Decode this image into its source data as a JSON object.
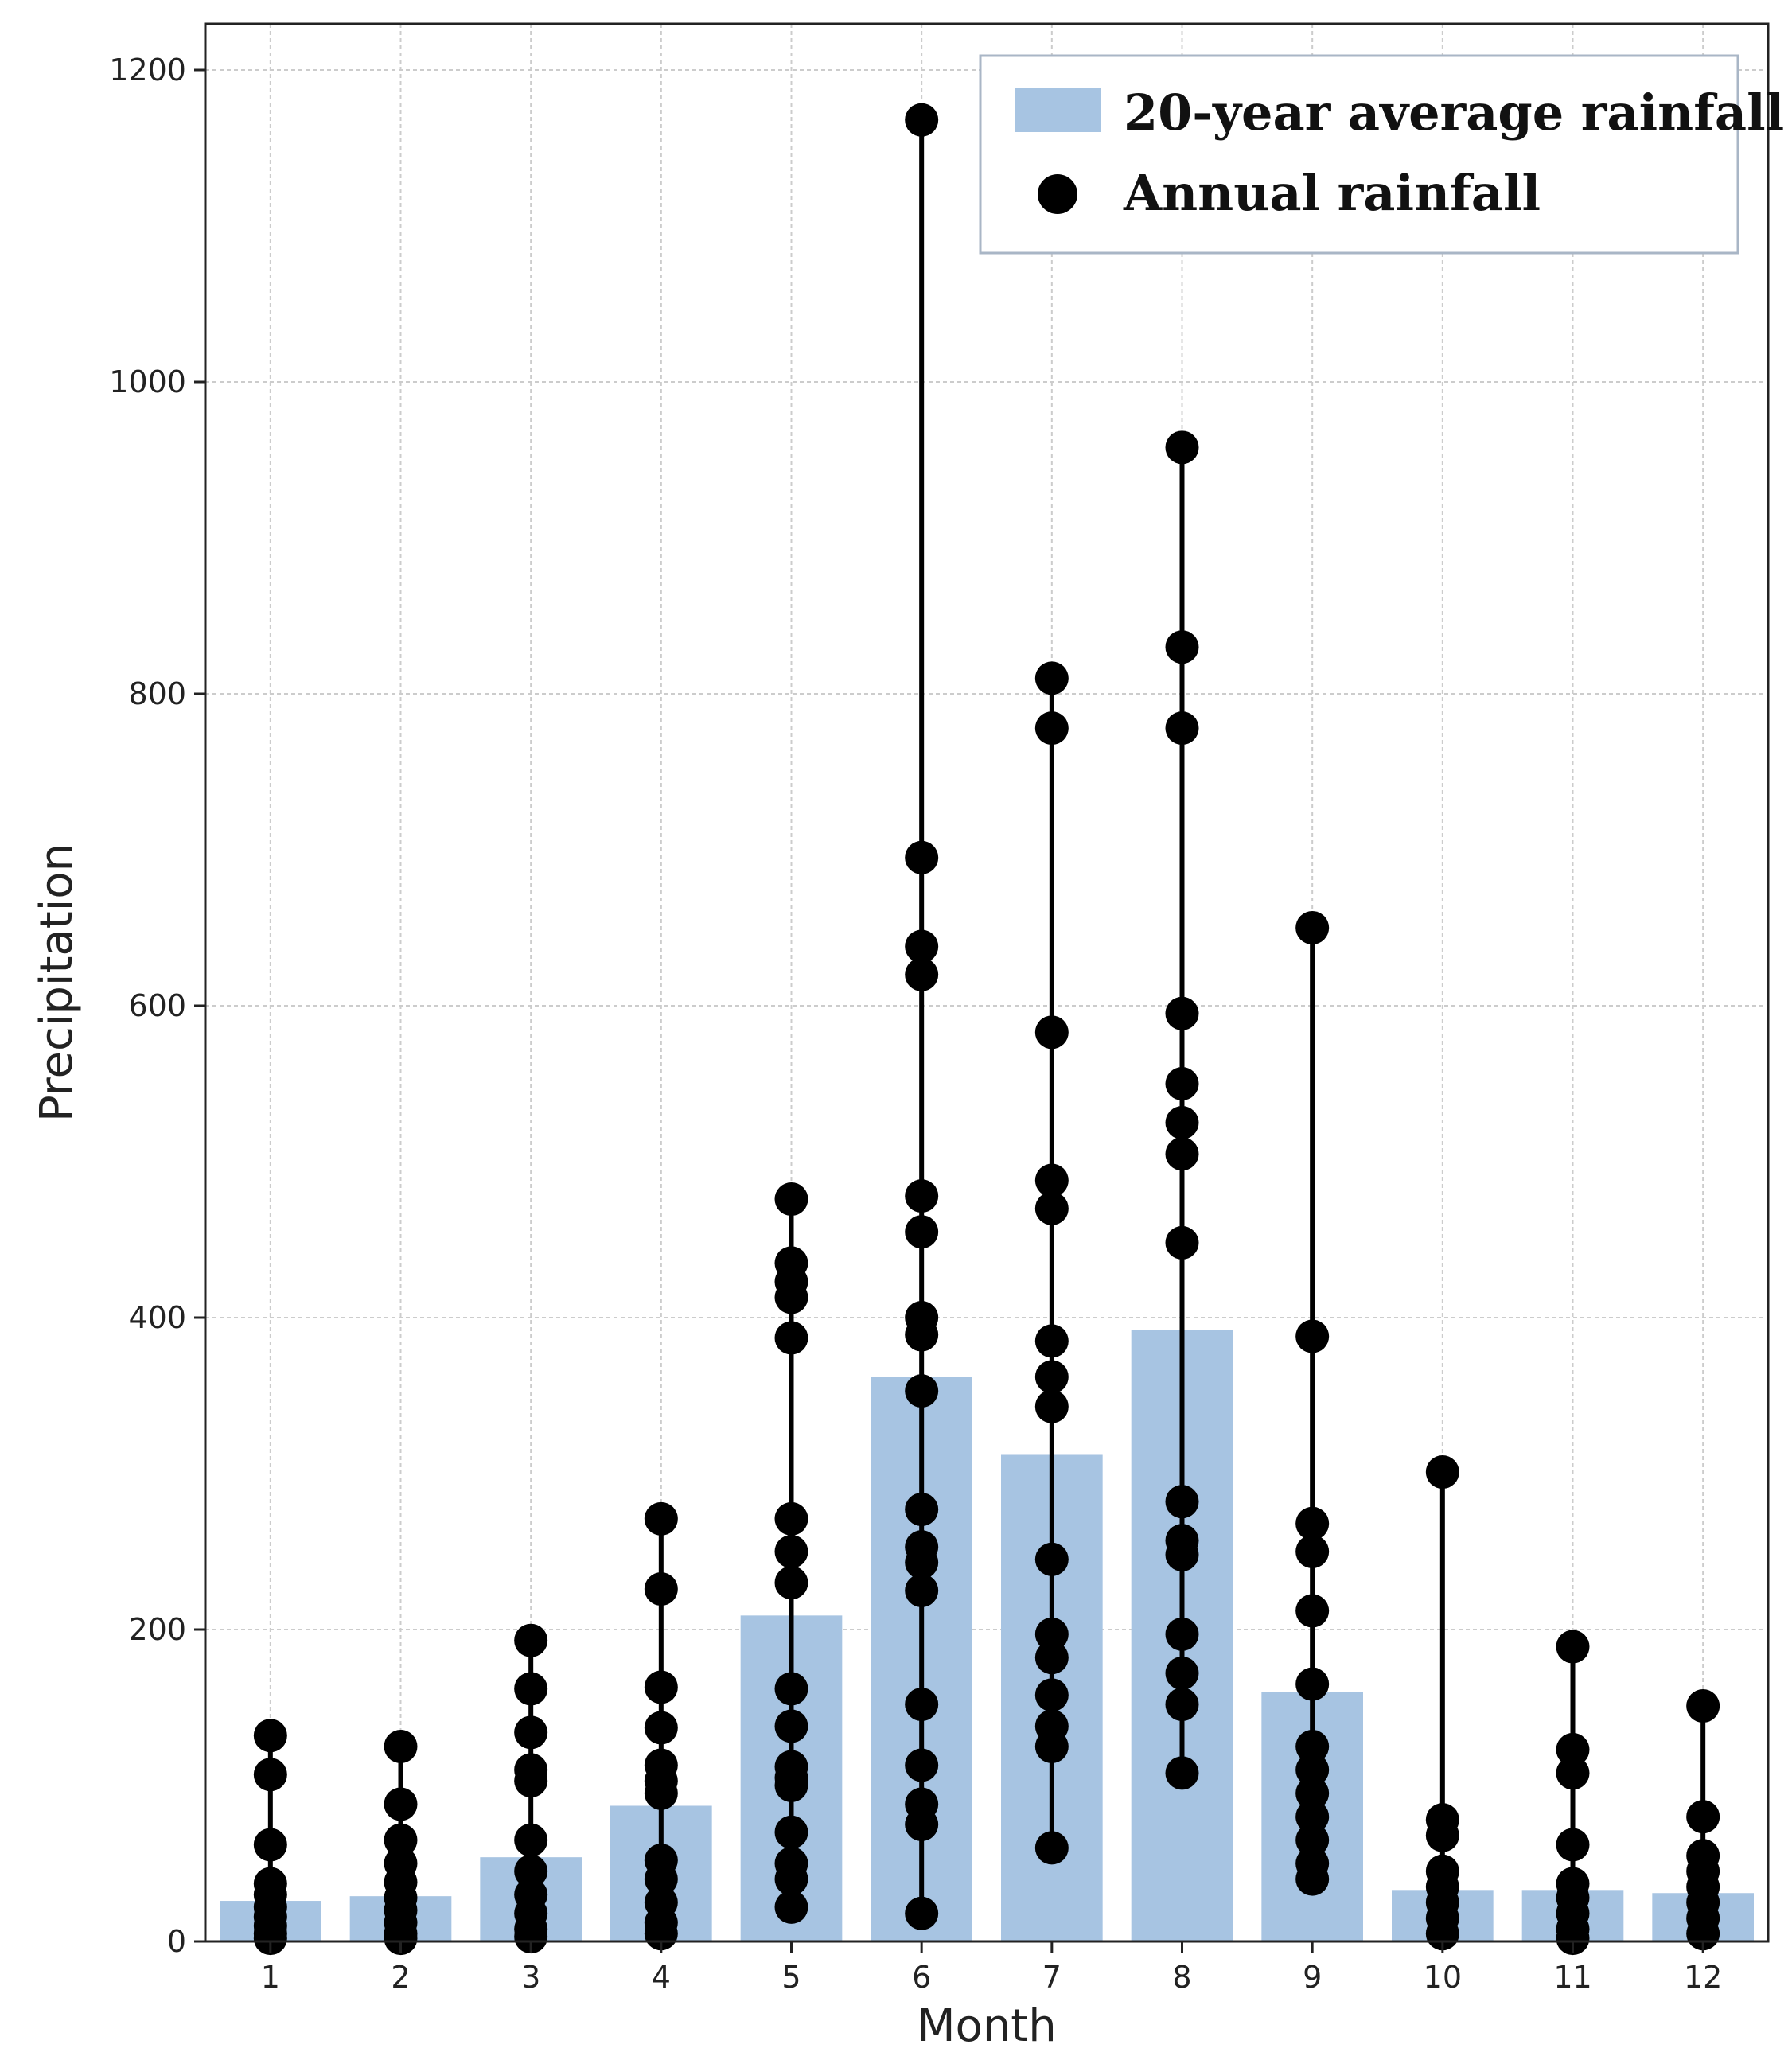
{
  "chart_data": {
    "type": "bar",
    "title": "",
    "xlabel": "Month",
    "ylabel": "Precipitation",
    "categories": [
      "1",
      "2",
      "3",
      "4",
      "5",
      "6",
      "7",
      "8",
      "9",
      "10",
      "11",
      "12"
    ],
    "ylim": [
      0,
      1200
    ],
    "yticks": [
      0,
      200,
      400,
      600,
      800,
      1000,
      1200
    ],
    "grid": true,
    "legend_position": "top-right",
    "colors": {
      "bar": "#a7c4e2",
      "point": "#000000",
      "grid": "#cccccc",
      "axes": "#222222"
    },
    "series": [
      {
        "name": "20-year average rainfall",
        "kind": "bar",
        "values": [
          26,
          29,
          54,
          87,
          209,
          362,
          312,
          392,
          160,
          33,
          33,
          31
        ]
      },
      {
        "name": "Annual rainfall",
        "kind": "scatter",
        "points_by_month": [
          [
            132,
            107,
            62,
            37,
            30,
            22,
            16,
            10,
            5,
            2
          ],
          [
            125,
            88,
            65,
            50,
            38,
            28,
            20,
            12,
            5,
            2
          ],
          [
            193,
            162,
            134,
            110,
            103,
            65,
            45,
            30,
            18,
            8,
            3
          ],
          [
            271,
            226,
            163,
            137,
            113,
            103,
            95,
            52,
            40,
            25,
            12,
            5
          ],
          [
            476,
            435,
            423,
            413,
            387,
            271,
            250,
            230,
            162,
            138,
            112,
            105,
            100,
            70,
            50,
            40,
            22
          ],
          [
            1168,
            695,
            638,
            620,
            478,
            455,
            400,
            389,
            353,
            277,
            253,
            243,
            225,
            152,
            113,
            88,
            75,
            18
          ],
          [
            810,
            778,
            583,
            488,
            470,
            385,
            362,
            343,
            245,
            197,
            182,
            158,
            138,
            125,
            60
          ],
          [
            958,
            830,
            778,
            595,
            550,
            525,
            505,
            448,
            282,
            257,
            248,
            197,
            172,
            152,
            108
          ],
          [
            650,
            388,
            268,
            250,
            212,
            165,
            125,
            110,
            95,
            80,
            65,
            50,
            40
          ],
          [
            301,
            78,
            68,
            45,
            35,
            25,
            15,
            5
          ],
          [
            189,
            123,
            108,
            62,
            37,
            28,
            18,
            8,
            2
          ],
          [
            151,
            80,
            55,
            45,
            35,
            25,
            15,
            5
          ]
        ]
      }
    ]
  }
}
